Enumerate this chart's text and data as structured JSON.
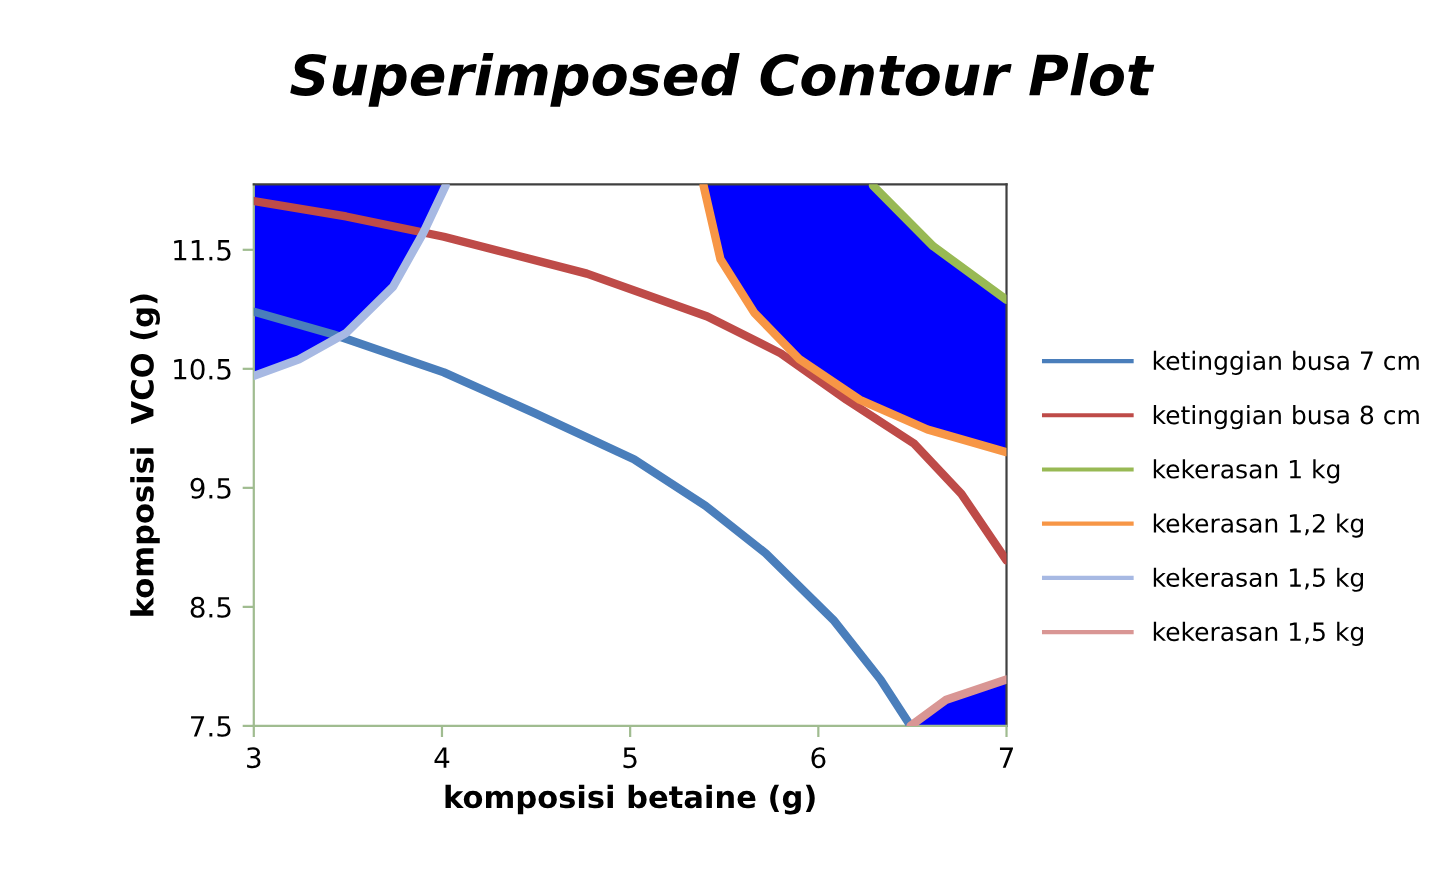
{
  "chart_data": {
    "type": "line",
    "title": "Superimposed Contour Plot",
    "xlabel": "komposisi betaine (g)",
    "ylabel": "komposisi  VCO (g)",
    "xlim": [
      3,
      7
    ],
    "ylim": [
      7.5,
      12.05
    ],
    "xticks": [
      3,
      4,
      5,
      6,
      7
    ],
    "yticks": [
      7.5,
      8.5,
      9.5,
      10.5,
      11.5
    ],
    "grid": false,
    "legend": "right",
    "marker": "none",
    "line_style": "solid",
    "series": [
      {
        "name": "ketinggian busa 7 cm",
        "color": "#4a7ebb",
        "x": [
          3,
          3.42,
          4.01,
          4.49,
          5.02,
          5.4,
          5.72,
          6.08,
          6.33,
          6.49
        ],
        "values": [
          10.98,
          10.79,
          10.47,
          10.13,
          9.74,
          9.35,
          8.95,
          8.39,
          7.89,
          7.5
        ]
      },
      {
        "name": "ketinggian busa 8 cm",
        "color": "#be4b48",
        "x": [
          3,
          3.49,
          4.01,
          4.77,
          5.41,
          5.8,
          6.15,
          6.51,
          6.76,
          7.0
        ],
        "values": [
          11.91,
          11.78,
          11.61,
          11.3,
          10.94,
          10.63,
          10.24,
          9.87,
          9.45,
          8.89
        ]
      },
      {
        "name": "kekerasan 1 kg",
        "color": "#98b954",
        "x": [
          6.29,
          6.61,
          7.0
        ],
        "values": [
          12.04,
          11.53,
          11.08
        ]
      },
      {
        "name": "kekerasan 1,2 kg",
        "color": "#f79646",
        "x": [
          5.39,
          5.48,
          5.66,
          5.9,
          6.22,
          6.58,
          7.0
        ],
        "values": [
          12.04,
          11.42,
          10.97,
          10.58,
          10.24,
          9.99,
          9.8
        ]
      },
      {
        "name": "kekerasan 1,5 kg",
        "color": "#a7b9e3",
        "x": [
          3,
          3.24,
          3.49,
          3.74,
          3.9,
          4.02
        ],
        "values": [
          10.44,
          10.58,
          10.8,
          11.19,
          11.64,
          12.04
        ]
      },
      {
        "name": "kekerasan 1,5 kg",
        "color": "#d99694",
        "x": [
          6.49,
          6.68,
          7.0
        ],
        "values": [
          7.5,
          7.72,
          7.89
        ]
      }
    ]
  }
}
